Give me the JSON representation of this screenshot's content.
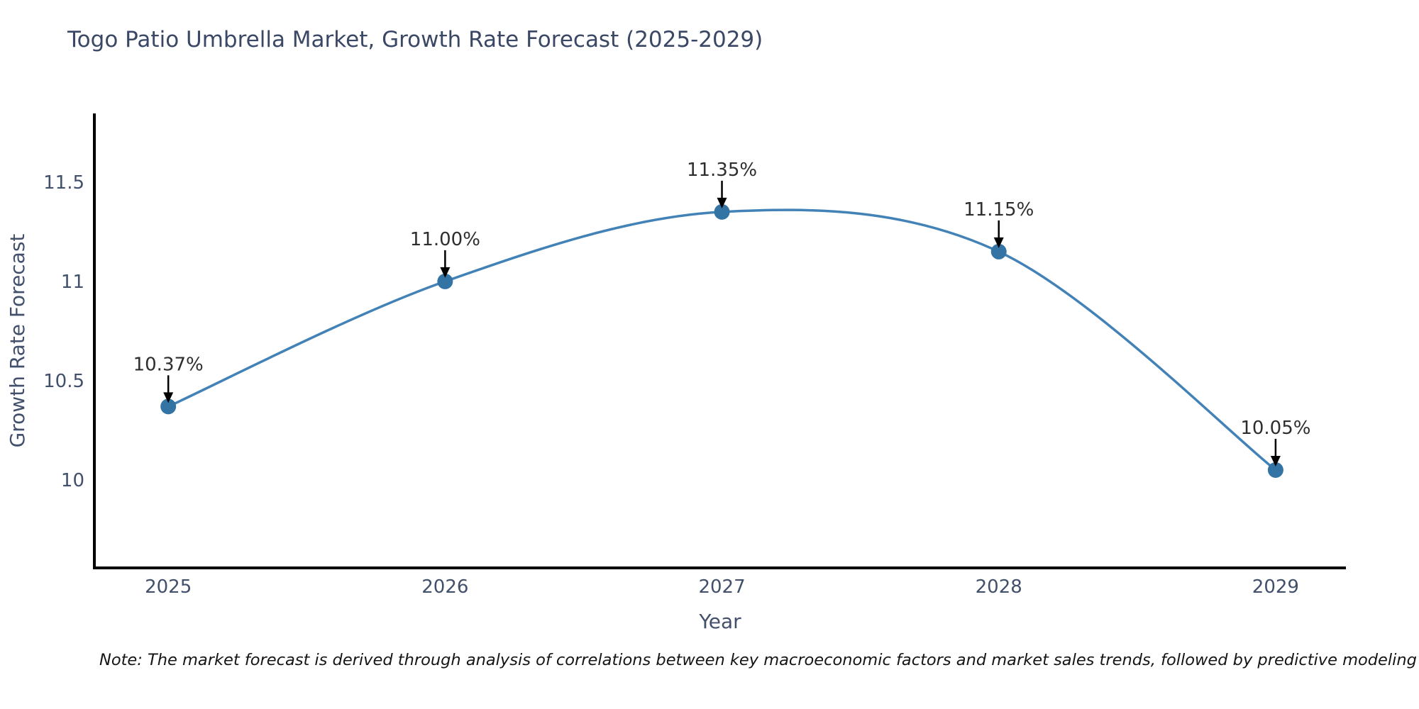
{
  "page": {
    "background_color": "#ffffff"
  },
  "chart": {
    "title": "Togo Patio Umbrella Market, Growth Rate Forecast (2025-2029)",
    "note": "Note: The market forecast is derived through analysis of correlations between key macroeconomic factors and market sales trends, followed by predictive modeling to project future sales."
  },
  "chart_data": {
    "type": "line",
    "title": "Togo Patio Umbrella Market, Growth Rate Forecast (2025-2029)",
    "xlabel": "Year",
    "ylabel": "Growth Rate Forecast",
    "x": [
      2025,
      2026,
      2027,
      2028,
      2029
    ],
    "x_tick_labels": [
      "2025",
      "2026",
      "2027",
      "2028",
      "2029"
    ],
    "y": [
      10.37,
      11.0,
      11.35,
      11.15,
      10.05
    ],
    "point_labels": [
      "10.37%",
      "11.00%",
      "11.35%",
      "11.15%",
      "10.05%"
    ],
    "y_ticks": [
      10,
      10.5,
      11,
      11.5
    ],
    "y_tick_labels": [
      "10",
      "10.5",
      "11",
      "11.5"
    ],
    "xlim": [
      2024.733,
      2029.254
    ],
    "ylim": [
      9.557,
      11.846
    ],
    "grid": false,
    "legend": null,
    "curve": "smooth",
    "annotations_have_arrows": true,
    "colors": {
      "line": "#4282b6",
      "marker": "#3474a4",
      "axis_spine": "#000000",
      "tick_label": "#42506b",
      "axis_title": "#42506b",
      "annotation_text": "#2e2e2e",
      "annotation_arrow": "#000000"
    }
  }
}
